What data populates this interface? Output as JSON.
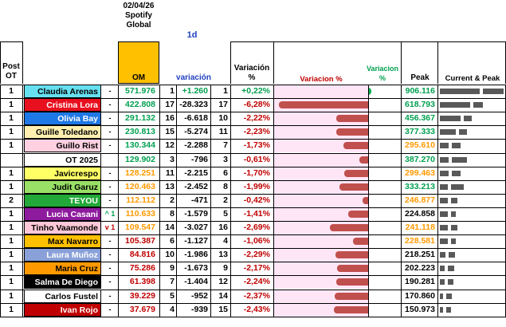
{
  "header": {
    "date": "02/04/26",
    "source1": "Spotify",
    "source2": "Global",
    "period": "1d",
    "post_ot_1": "Post",
    "post_ot_2": "OT",
    "om": "OM",
    "variacion": "variación",
    "var_pct_1": "Variación",
    "var_pct_2": "%",
    "bar_label": "Variacion  %",
    "var2_1": "Variacion",
    "var2_2": "%",
    "peak": "Peak",
    "current_peak": "Current & Peak"
  },
  "colors": {
    "om_header": "#ffc000",
    "bar_negative": "#c0504d",
    "bar_positive": "#00b050",
    "bar_bg": "#ffe6f7",
    "current_peak_block": "#595959"
  },
  "rows": [
    {
      "post": "1",
      "name": "Claudia Arenas",
      "name_bg": "#66e0f0",
      "name_color": "#000000",
      "change": "-",
      "change_color": "#000000",
      "om": "571.976",
      "om_color": "#00a050",
      "r1": "1",
      "var": "+1.260",
      "var_color": "#00a050",
      "r2": "1",
      "pct": "+0,22%",
      "pct_color": "#00a050",
      "pct_value": 0.22,
      "peak": "906.116",
      "peak_color": "#00a050",
      "current_ratio": 0.63,
      "peak_ratio": 1.0
    },
    {
      "post": "1",
      "name": "Cristina Lora",
      "name_bg": "#e8101f",
      "name_color": "#ffffff",
      "change": "-",
      "change_color": "#000000",
      "om": "422.808",
      "om_color": "#00a050",
      "r1": "17",
      "var": "-28.323",
      "var_color": "#000000",
      "r2": "17",
      "pct": "-6,28%",
      "pct_color": "#c00000",
      "pct_value": -6.28,
      "peak": "618.793",
      "peak_color": "#00a050",
      "current_ratio": 0.47,
      "peak_ratio": 0.68
    },
    {
      "post": "1",
      "name": "Olivia Bay",
      "name_bg": "#1e78e6",
      "name_color": "#ffffff",
      "change": "-",
      "change_color": "#000000",
      "om": "291.132",
      "om_color": "#00a050",
      "r1": "16",
      "var": "-6.618",
      "var_color": "#000000",
      "r2": "10",
      "pct": "-2,22%",
      "pct_color": "#c00000",
      "pct_value": -2.22,
      "peak": "456.367",
      "peak_color": "#00a050",
      "current_ratio": 0.32,
      "peak_ratio": 0.5
    },
    {
      "post": "1",
      "name": "Guille Toledano",
      "name_bg": "#fff0b0",
      "name_color": "#000000",
      "change": "-",
      "change_color": "#000000",
      "om": "230.813",
      "om_color": "#00a050",
      "r1": "15",
      "var": "-5.274",
      "var_color": "#000000",
      "r2": "11",
      "pct": "-2,23%",
      "pct_color": "#c00000",
      "pct_value": -2.23,
      "peak": "377.333",
      "peak_color": "#00a050",
      "current_ratio": 0.25,
      "peak_ratio": 0.42
    },
    {
      "post": "1",
      "name": "Guillo Rist",
      "name_bg": "#ffd0e0",
      "name_color": "#000000",
      "change": "-",
      "change_color": "#000000",
      "om": "130.344",
      "om_color": "#00a050",
      "r1": "12",
      "var": "-2.288",
      "var_color": "#000000",
      "r2": "7",
      "pct": "-1,73%",
      "pct_color": "#c00000",
      "pct_value": -1.73,
      "peak": "295.610",
      "peak_color": "#ff9900",
      "current_ratio": 0.14,
      "peak_ratio": 0.33
    },
    {
      "post": "",
      "name": "OT 2025",
      "name_bg": "#ffffff",
      "name_color": "#000000",
      "change": "",
      "change_color": "#000000",
      "om": "129.902",
      "om_color": "#00a050",
      "r1": "3",
      "var": "-796",
      "var_color": "#000000",
      "r2": "3",
      "pct": "-0,61%",
      "pct_color": "#c00000",
      "pct_value": -0.61,
      "peak": "387.270",
      "peak_color": "#00a050",
      "current_ratio": 0.14,
      "peak_ratio": 0.43
    },
    {
      "post": "1",
      "name": "Javicrespo",
      "name_bg": "#ffff66",
      "name_color": "#000000",
      "change": "-",
      "change_color": "#000000",
      "om": "128.251",
      "om_color": "#ff9900",
      "r1": "11",
      "var": "-2.215",
      "var_color": "#000000",
      "r2": "6",
      "pct": "-1,70%",
      "pct_color": "#c00000",
      "pct_value": -1.7,
      "peak": "299.463",
      "peak_color": "#ff9900",
      "current_ratio": 0.14,
      "peak_ratio": 0.33
    },
    {
      "post": "1",
      "name": "Judit Garuz",
      "name_bg": "#99e066",
      "name_color": "#000000",
      "change": "-",
      "change_color": "#000000",
      "om": "120.463",
      "om_color": "#ff9900",
      "r1": "13",
      "var": "-2.452",
      "var_color": "#000000",
      "r2": "8",
      "pct": "-1,99%",
      "pct_color": "#c00000",
      "pct_value": -1.99,
      "peak": "333.213",
      "peak_color": "#00a050",
      "current_ratio": 0.13,
      "peak_ratio": 0.37
    },
    {
      "post": "2",
      "name": "TEYOU",
      "name_bg": "#22a838",
      "name_color": "#ffffff",
      "change": "-",
      "change_color": "#000000",
      "om": "112.112",
      "om_color": "#ff9900",
      "r1": "2",
      "var": "-471",
      "var_color": "#000000",
      "r2": "2",
      "pct": "-0,42%",
      "pct_color": "#c00000",
      "pct_value": -0.42,
      "peak": "246.877",
      "peak_color": "#ff9900",
      "current_ratio": 0.12,
      "peak_ratio": 0.27
    },
    {
      "post": "1",
      "name": "Lucia Casani",
      "name_bg": "#8e1a9e",
      "name_color": "#ffffff",
      "change": "^ 1",
      "change_color": "#00a050",
      "om": "110.633",
      "om_color": "#ff9900",
      "r1": "8",
      "var": "-1.579",
      "var_color": "#000000",
      "r2": "5",
      "pct": "-1,41%",
      "pct_color": "#c00000",
      "pct_value": -1.41,
      "peak": "224.858",
      "peak_color": "#000000",
      "current_ratio": 0.12,
      "peak_ratio": 0.25
    },
    {
      "post": "1",
      "name": "Tinho Vaamonde",
      "name_bg": "#ffc8d8",
      "name_color": "#000000",
      "change": "v 1",
      "change_color": "#c00000",
      "om": "109.547",
      "om_color": "#ff9900",
      "r1": "14",
      "var": "-3.027",
      "var_color": "#000000",
      "r2": "16",
      "pct": "-2,69%",
      "pct_color": "#c00000",
      "pct_value": -2.69,
      "peak": "241.118",
      "peak_color": "#ff9900",
      "current_ratio": 0.12,
      "peak_ratio": 0.27
    },
    {
      "post": "1",
      "name": "Max Navarro",
      "name_bg": "#ffc000",
      "name_color": "#000000",
      "change": "-",
      "change_color": "#000000",
      "om": "105.387",
      "om_color": "#c00000",
      "r1": "6",
      "var": "-1.127",
      "var_color": "#000000",
      "r2": "4",
      "pct": "-1,06%",
      "pct_color": "#c00000",
      "pct_value": -1.06,
      "peak": "228.581",
      "peak_color": "#ff9900",
      "current_ratio": 0.12,
      "peak_ratio": 0.25
    },
    {
      "post": "1",
      "name": "Laura Muñoz",
      "name_bg": "#8aa0d8",
      "name_color": "#ffffff",
      "change": "-",
      "change_color": "#000000",
      "om": "84.816",
      "om_color": "#c00000",
      "r1": "10",
      "var": "-1.986",
      "var_color": "#000000",
      "r2": "13",
      "pct": "-2,29%",
      "pct_color": "#c00000",
      "pct_value": -2.29,
      "peak": "218.251",
      "peak_color": "#000000",
      "current_ratio": 0.09,
      "peak_ratio": 0.24
    },
    {
      "post": "1",
      "name": "Maria Cruz",
      "name_bg": "#ff9900",
      "name_color": "#000000",
      "change": "-",
      "change_color": "#000000",
      "om": "75.286",
      "om_color": "#c00000",
      "r1": "9",
      "var": "-1.673",
      "var_color": "#000000",
      "r2": "9",
      "pct": "-2,17%",
      "pct_color": "#c00000",
      "pct_value": -2.17,
      "peak": "202.223",
      "peak_color": "#000000",
      "current_ratio": 0.08,
      "peak_ratio": 0.22
    },
    {
      "post": "1",
      "name": "Salma De Diego",
      "name_bg": "#000000",
      "name_color": "#ffffff",
      "change": "-",
      "change_color": "#000000",
      "om": "61.398",
      "om_color": "#c00000",
      "r1": "7",
      "var": "-1.404",
      "var_color": "#000000",
      "r2": "12",
      "pct": "-2,24%",
      "pct_color": "#c00000",
      "pct_value": -2.24,
      "peak": "190.281",
      "peak_color": "#000000",
      "current_ratio": 0.07,
      "peak_ratio": 0.21
    },
    {
      "post": "1",
      "name": "Carlos Fustel",
      "name_bg": "#ffffff",
      "name_color": "#000000",
      "change": "-",
      "change_color": "#000000",
      "om": "39.229",
      "om_color": "#c00000",
      "r1": "5",
      "var": "-952",
      "var_color": "#000000",
      "r2": "14",
      "pct": "-2,37%",
      "pct_color": "#c00000",
      "pct_value": -2.37,
      "peak": "170.860",
      "peak_color": "#000000",
      "current_ratio": 0.04,
      "peak_ratio": 0.19
    },
    {
      "post": "1",
      "name": "Ivan Rojo",
      "name_bg": "#c00000",
      "name_color": "#ffffff",
      "change": "-",
      "change_color": "#000000",
      "om": "37.679",
      "om_color": "#c00000",
      "r1": "4",
      "var": "-939",
      "var_color": "#000000",
      "r2": "15",
      "pct": "-2,43%",
      "pct_color": "#c00000",
      "pct_value": -2.43,
      "peak": "150.973",
      "peak_color": "#000000",
      "current_ratio": 0.04,
      "peak_ratio": 0.17
    }
  ]
}
